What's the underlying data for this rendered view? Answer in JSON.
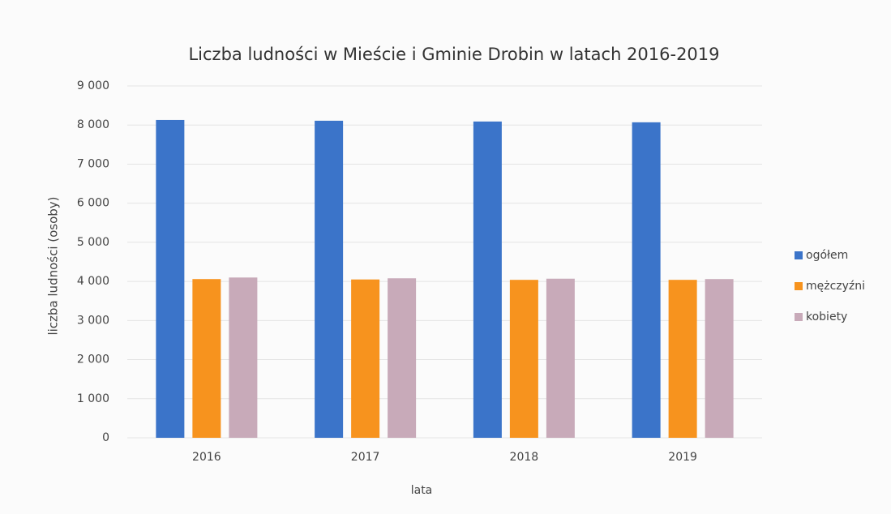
{
  "chart_data": {
    "type": "bar",
    "title": "Liczba ludności w Mieście i Gminie Drobin w latach 2016-2019",
    "x_label": "lata",
    "y_label": "liczba ludności (osoby)",
    "categories": [
      "2016",
      "2017",
      "2018",
      "2019"
    ],
    "series": [
      {
        "name": "ogółem",
        "color": "#3b74c9",
        "values": [
          8130,
          8110,
          8090,
          8070
        ]
      },
      {
        "name": "mężczyźni",
        "color": "#f7931e",
        "values": [
          4060,
          4050,
          4040,
          4040
        ]
      },
      {
        "name": "kobiety",
        "color": "#c8aab9",
        "values": [
          4100,
          4080,
          4070,
          4060
        ]
      }
    ],
    "ylim": [
      0,
      9000
    ],
    "yticks": [
      0,
      {
        "value": 1000,
        "label": "1 000"
      },
      {
        "value": 2000,
        "label": "2 000"
      },
      {
        "value": 3000,
        "label": "3 000"
      },
      {
        "value": 4000,
        "label": "4 000"
      },
      {
        "value": 5000,
        "label": "5 000"
      },
      {
        "value": 6000,
        "label": "6 000"
      },
      {
        "value": 7000,
        "label": "7 000"
      },
      {
        "value": 8000,
        "label": "8 000"
      },
      {
        "value": 9000,
        "label": "9 000"
      }
    ],
    "grid": true,
    "legend": "right"
  }
}
